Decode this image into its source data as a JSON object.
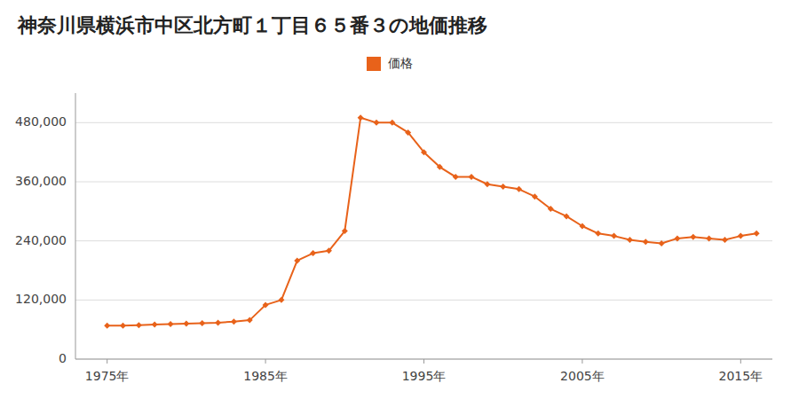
{
  "chart_data": {
    "type": "line",
    "title": "神奈川県横浜市中区北方町１丁目６５番３の地価推移",
    "x": [
      1975,
      1976,
      1977,
      1978,
      1979,
      1980,
      1981,
      1982,
      1983,
      1984,
      1985,
      1986,
      1987,
      1988,
      1989,
      1990,
      1991,
      1992,
      1993,
      1994,
      1995,
      1996,
      1997,
      1998,
      1999,
      2000,
      2001,
      2002,
      2003,
      2004,
      2005,
      2006,
      2007,
      2008,
      2009,
      2010,
      2011,
      2012,
      2013,
      2014,
      2015,
      2016
    ],
    "series": [
      {
        "name": "価格",
        "color": "#E8621A",
        "marker": "diamond",
        "values": [
          68000,
          68000,
          69000,
          70000,
          71000,
          72000,
          73000,
          74000,
          76000,
          79000,
          110000,
          120000,
          200000,
          215000,
          220000,
          260000,
          490000,
          480000,
          480000,
          460000,
          420000,
          390000,
          370000,
          370000,
          355000,
          350000,
          345000,
          330000,
          305000,
          290000,
          270000,
          255000,
          250000,
          242000,
          238000,
          235000,
          245000,
          248000,
          245000,
          242000,
          250000,
          255000
        ]
      }
    ],
    "xlim": [
      1973,
      2017
    ],
    "ylim": [
      0,
      540000
    ],
    "xticks": [
      {
        "value": 1975,
        "label": "1975年"
      },
      {
        "value": 1985,
        "label": "1985年"
      },
      {
        "value": 1995,
        "label": "1995年"
      },
      {
        "value": 2005,
        "label": "2005年"
      },
      {
        "value": 2015,
        "label": "2015年"
      }
    ],
    "yticks": [
      0,
      {
        "value": 120000,
        "label": "120,000"
      },
      {
        "value": 240000,
        "label": "240,000"
      },
      {
        "value": 360000,
        "label": "360,000"
      },
      {
        "value": 480000,
        "label": "480,000"
      }
    ],
    "grid": true,
    "legend": "top"
  }
}
